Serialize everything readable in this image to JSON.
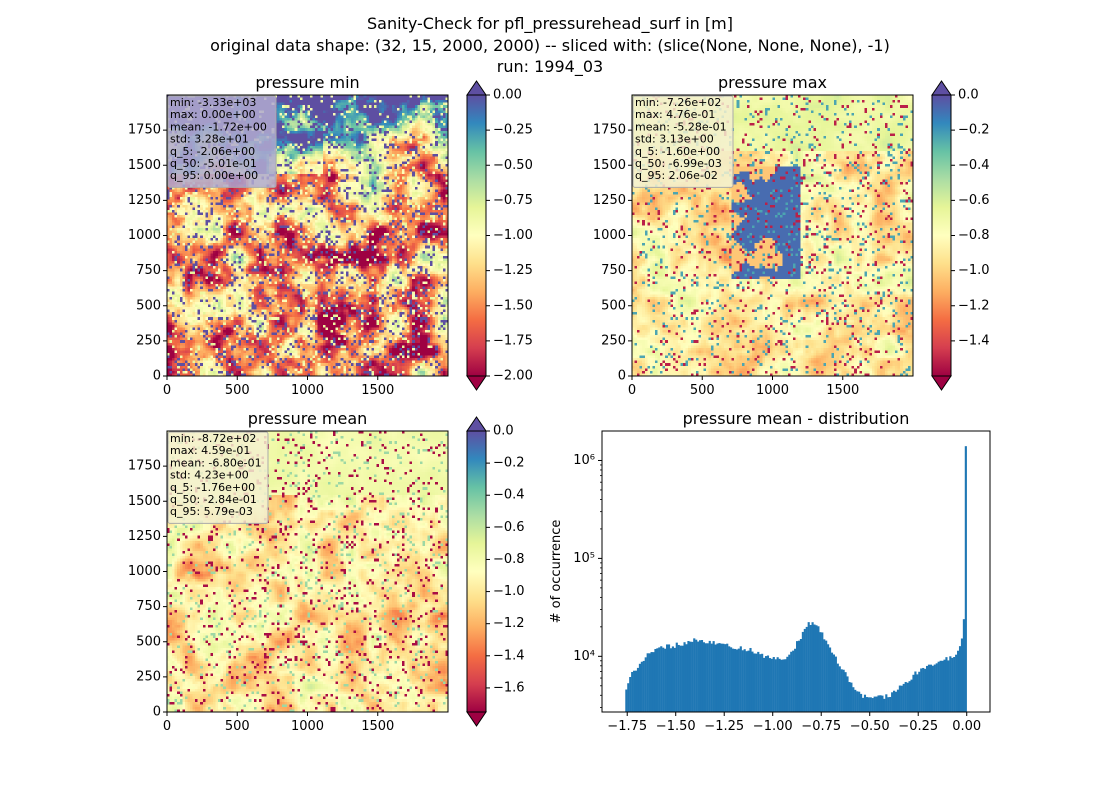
{
  "figure": {
    "title_lines": [
      "Sanity-Check for pfl_pressurehead_surf in [m]",
      "original data shape: (32, 15, 2000, 2000) -- sliced with: (slice(None, None, None), -1)",
      "run: 1994_03"
    ]
  },
  "chart_data": [
    {
      "type": "heatmap",
      "title": "pressure min",
      "colormap": "Spectral",
      "xlim": [
        0,
        2000
      ],
      "ylim": [
        0,
        2000
      ],
      "xticks": [
        "0",
        "500",
        "1000",
        "1500"
      ],
      "yticks": [
        "0",
        "250",
        "500",
        "750",
        "1000",
        "1250",
        "1500",
        "1750"
      ],
      "colorbar": {
        "vmin": -2.0,
        "vmax": 0.0,
        "ticks": [
          "0.00",
          "−0.25",
          "−0.50",
          "−0.75",
          "−1.00",
          "−1.25",
          "−1.50",
          "−1.75",
          "−2.00"
        ],
        "tick_values": [
          0.0,
          -0.25,
          -0.5,
          -0.75,
          -1.0,
          -1.25,
          -1.5,
          -1.75,
          -2.0
        ],
        "extend": "both"
      },
      "stats": [
        "min: -3.33e+03",
        "max: 0.00e+00",
        "mean: -1.72e+00",
        "std: 3.28e+01",
        "q_5: -2.06e+00",
        "q_50: -5.01e-01",
        "q_95: 0.00e+00"
      ],
      "stats_box_color": "#b0aad0"
    },
    {
      "type": "heatmap",
      "title": "pressure max",
      "colormap": "Spectral",
      "xlim": [
        0,
        2000
      ],
      "ylim": [
        0,
        2000
      ],
      "xticks": [
        "0",
        "500",
        "1000",
        "1500"
      ],
      "yticks": [
        "0",
        "250",
        "500",
        "750",
        "1000",
        "1250",
        "1500",
        "1750"
      ],
      "colorbar": {
        "vmin": -1.6,
        "vmax": 0.0,
        "ticks": [
          "0.0",
          "−0.2",
          "−0.4",
          "−0.6",
          "−0.8",
          "−1.0",
          "−1.2",
          "−1.4"
        ],
        "tick_values": [
          0.0,
          -0.2,
          -0.4,
          -0.6,
          -0.8,
          -1.0,
          -1.2,
          -1.4
        ],
        "extend": "both"
      },
      "stats": [
        "min: -7.26e+02",
        "max: 4.76e-01",
        "mean: -5.28e-01",
        "std: 3.13e+00",
        "q_5: -1.60e+00",
        "q_50: -6.99e-03",
        "q_95: 2.06e-02"
      ],
      "stats_box_color": "#f3f0cf"
    },
    {
      "type": "heatmap",
      "title": "pressure mean",
      "colormap": "Spectral",
      "xlim": [
        0,
        2000
      ],
      "ylim": [
        0,
        2000
      ],
      "xticks": [
        "0",
        "500",
        "1000",
        "1500"
      ],
      "yticks": [
        "0",
        "250",
        "500",
        "750",
        "1000",
        "1250",
        "1500",
        "1750"
      ],
      "colorbar": {
        "vmin": -1.75,
        "vmax": 0.0,
        "ticks": [
          "0.0",
          "−0.2",
          "−0.4",
          "−0.6",
          "−0.8",
          "−1.0",
          "−1.2",
          "−1.4",
          "−1.6"
        ],
        "tick_values": [
          0.0,
          -0.2,
          -0.4,
          -0.6,
          -0.8,
          -1.0,
          -1.2,
          -1.4,
          -1.6
        ],
        "extend": "both"
      },
      "stats": [
        "min: -8.72e+02",
        "max: 4.59e-01",
        "mean: -6.80e-01",
        "std: 4.23e+00",
        "q_5: -1.76e+00",
        "q_50: -2.84e-01",
        "q_95: 5.79e-03"
      ],
      "stats_box_color": "#f3f0cf"
    },
    {
      "type": "bar",
      "title": "pressure mean - distribution",
      "ylabel": "# of occurrence",
      "xlabel": "",
      "yscale": "log",
      "xlim": [
        -1.88,
        0.12
      ],
      "ylim": [
        2700,
        2000000
      ],
      "xticks": [
        "−1.75",
        "−1.50",
        "−1.25",
        "−1.00",
        "−0.75",
        "−0.50",
        "−0.25",
        "0.00"
      ],
      "xtick_values": [
        -1.75,
        -1.5,
        -1.25,
        -1.0,
        -0.75,
        -0.5,
        -0.25,
        0.0
      ],
      "yticks": [
        "10⁴",
        "10⁵",
        "10⁶"
      ],
      "ytick_values": [
        10000,
        100000,
        1000000
      ],
      "bar_color": "#1f77b4",
      "bins": {
        "start": -1.76,
        "end": 0.0,
        "count": 176,
        "shape_points": [
          [
            -1.76,
            4200
          ],
          [
            -1.74,
            6000
          ],
          [
            -1.7,
            7800
          ],
          [
            -1.65,
            10000
          ],
          [
            -1.6,
            11500
          ],
          [
            -1.55,
            12500
          ],
          [
            -1.5,
            13000
          ],
          [
            -1.45,
            13500
          ],
          [
            -1.4,
            14500
          ],
          [
            -1.35,
            14000
          ],
          [
            -1.3,
            13500
          ],
          [
            -1.25,
            13000
          ],
          [
            -1.2,
            12500
          ],
          [
            -1.15,
            12000
          ],
          [
            -1.1,
            11500
          ],
          [
            -1.05,
            10000
          ],
          [
            -1.0,
            9500
          ],
          [
            -0.95,
            9000
          ],
          [
            -0.9,
            11500
          ],
          [
            -0.85,
            16000
          ],
          [
            -0.82,
            22000
          ],
          [
            -0.78,
            22000
          ],
          [
            -0.75,
            18000
          ],
          [
            -0.7,
            11500
          ],
          [
            -0.65,
            8000
          ],
          [
            -0.6,
            5500
          ],
          [
            -0.55,
            4000
          ],
          [
            -0.5,
            3700
          ],
          [
            -0.45,
            3800
          ],
          [
            -0.4,
            4000
          ],
          [
            -0.35,
            4800
          ],
          [
            -0.3,
            5800
          ],
          [
            -0.25,
            7000
          ],
          [
            -0.2,
            8000
          ],
          [
            -0.15,
            8800
          ],
          [
            -0.1,
            9500
          ],
          [
            -0.05,
            10500
          ],
          [
            -0.03,
            13000
          ],
          [
            -0.02,
            18000
          ],
          [
            -0.01,
            35000
          ],
          [
            0.0,
            1400000
          ]
        ]
      }
    }
  ]
}
